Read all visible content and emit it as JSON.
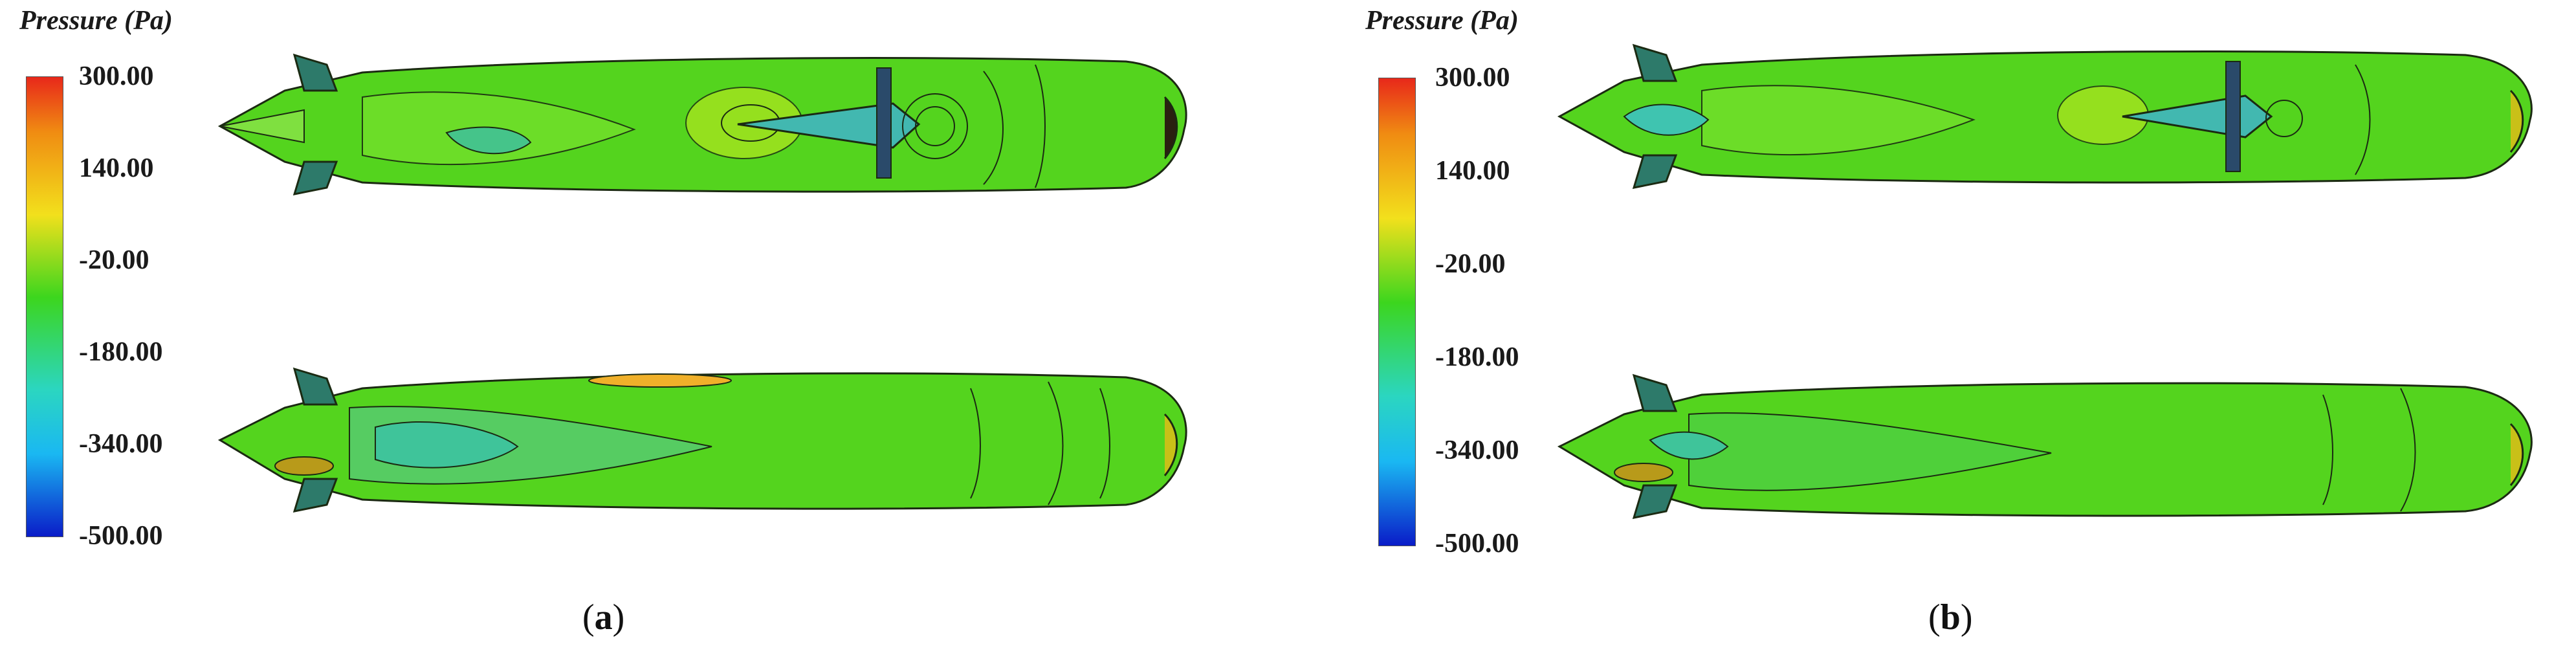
{
  "colors": {
    "scale_top": "#e8281a",
    "scale_upper": "#f08c12",
    "scale_mid_high": "#f2e01c",
    "scale_mid": "#3cd61e",
    "scale_low": "#2bd6c0",
    "scale_lower": "#1ab8f2",
    "scale_bottom": "#0a1cc8",
    "hull_base": "#52d61c",
    "contour_line": "#1b2a12"
  },
  "panels": [
    {
      "id": "a",
      "legend": {
        "title": "Pressure (Pa)",
        "ticks": [
          "300.00",
          "140.00",
          "-20.00",
          "-180.00",
          "-340.00",
          "-500.00"
        ]
      },
      "caption": {
        "open": "(",
        "letter": "a",
        "close": ")"
      }
    },
    {
      "id": "b",
      "legend": {
        "title": "Pressure (Pa)",
        "ticks": [
          "300.00",
          "140.00",
          "-20.00",
          "-180.00",
          "-340.00",
          "-500.00"
        ]
      },
      "caption": {
        "open": "(",
        "letter": "b",
        "close": ")"
      }
    }
  ]
}
